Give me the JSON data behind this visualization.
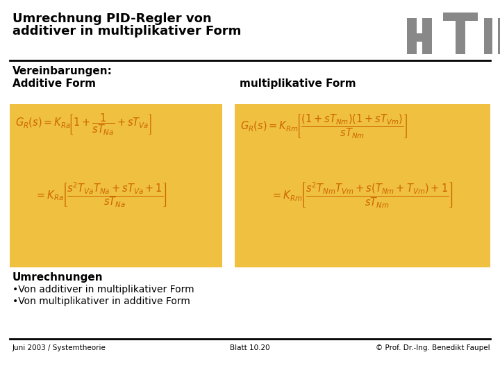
{
  "title_line1": "Umrechnung PID-Regler von",
  "title_line2": "additiver in multiplikativer Form",
  "bg_color": "#ffffff",
  "title_color": "#000000",
  "box_color": "#f0c040",
  "formula_color": "#cc6600",
  "section_label": "Vereinbarungen:",
  "label_additive": "Additive Form",
  "label_multiplicative": "multiplikative Form",
  "section_umrechnungen": "Umrechnungen",
  "bullet1": "•Von additiver in multiplikativer Form",
  "bullet2": "•Von multiplikativer in additive Form",
  "footer_left": "Juni 2003 / Systemtheorie",
  "footer_center": "Blatt 10.20",
  "footer_right": "© Prof. Dr.-Ing. Benedikt Faupel",
  "htw_color": "#888888"
}
